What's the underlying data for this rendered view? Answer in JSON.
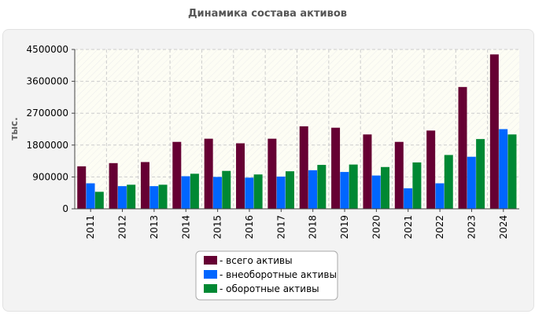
{
  "chart_data": {
    "type": "bar",
    "title": "Динамика состава активов",
    "ylabel": "тыс.",
    "xlabel": "",
    "ylim": [
      0,
      4500000
    ],
    "yticks": [
      0,
      900000,
      1800000,
      2700000,
      3600000,
      4500000
    ],
    "grid": true,
    "legend": "bottom-center",
    "categories": [
      "2011",
      "2012",
      "2013",
      "2014",
      "2015",
      "2016",
      "2017",
      "2018",
      "2019",
      "2020",
      "2021",
      "2022",
      "2023",
      "2024"
    ],
    "series": [
      {
        "name": "- всего активы",
        "color": "#660033",
        "values": [
          1200000,
          1290000,
          1320000,
          1890000,
          1980000,
          1850000,
          1980000,
          2330000,
          2290000,
          2100000,
          1890000,
          2210000,
          3440000,
          4360000
        ]
      },
      {
        "name": "- внеоборотные активы",
        "color": "#0066ff",
        "values": [
          720000,
          640000,
          640000,
          920000,
          900000,
          880000,
          910000,
          1090000,
          1040000,
          940000,
          580000,
          720000,
          1470000,
          2250000
        ]
      },
      {
        "name": "- оборотные активы",
        "color": "#008833",
        "values": [
          480000,
          680000,
          680000,
          990000,
          1070000,
          970000,
          1060000,
          1240000,
          1250000,
          1180000,
          1310000,
          1520000,
          1970000,
          2100000
        ]
      }
    ]
  }
}
